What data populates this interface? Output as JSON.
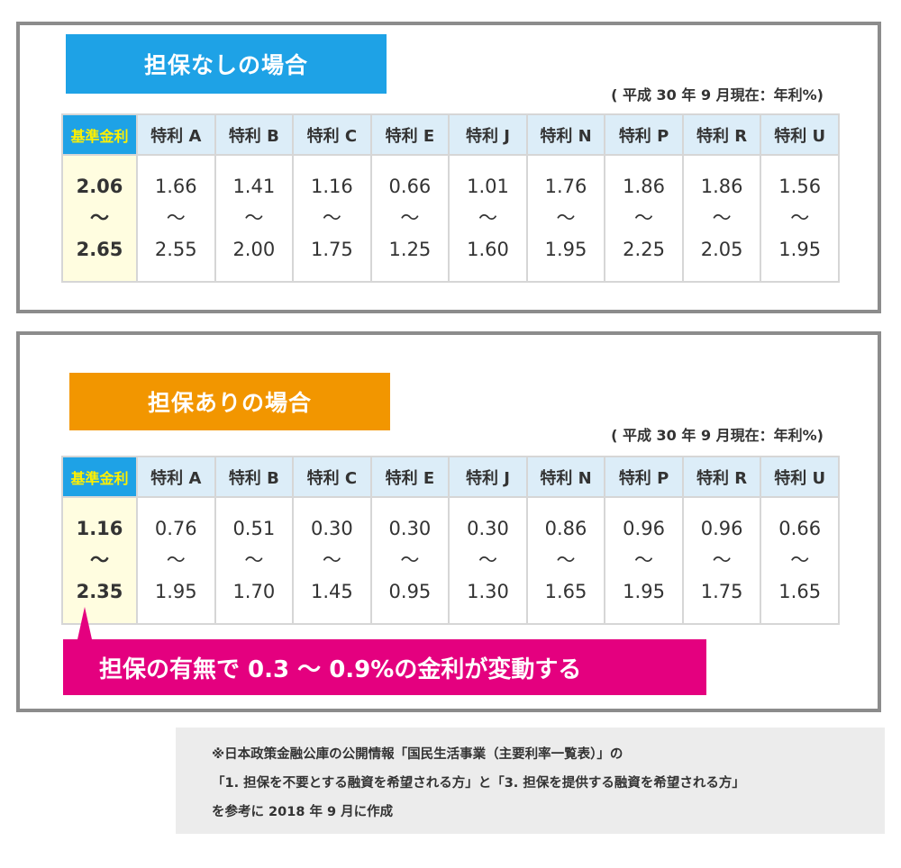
{
  "columns": [
    "基準金利",
    "特利 A",
    "特利 B",
    "特利 C",
    "特利 E",
    "特利 J",
    "特利 N",
    "特利 P",
    "特利 R",
    "特利 U"
  ],
  "tilde": "〜",
  "section1": {
    "title": "担保なしの場合",
    "as_of": "( 平成 30 年 9 月現在：年利%)",
    "rates": [
      {
        "low": "2.06",
        "high": "2.65"
      },
      {
        "low": "1.66",
        "high": "2.55"
      },
      {
        "low": "1.41",
        "high": "2.00"
      },
      {
        "low": "1.16",
        "high": "1.75"
      },
      {
        "low": "0.66",
        "high": "1.25"
      },
      {
        "low": "1.01",
        "high": "1.60"
      },
      {
        "low": "1.76",
        "high": "1.95"
      },
      {
        "low": "1.86",
        "high": "2.25"
      },
      {
        "low": "1.86",
        "high": "2.05"
      },
      {
        "low": "1.56",
        "high": "1.95"
      }
    ]
  },
  "section2": {
    "title": "担保ありの場合",
    "as_of": "( 平成 30 年 9 月現在：年利%)",
    "rates": [
      {
        "low": "1.16",
        "high": "2.35"
      },
      {
        "low": "0.76",
        "high": "1.95"
      },
      {
        "low": "0.51",
        "high": "1.70"
      },
      {
        "low": "0.30",
        "high": "1.45"
      },
      {
        "low": "0.30",
        "high": "0.95"
      },
      {
        "low": "0.30",
        "high": "1.30"
      },
      {
        "low": "0.86",
        "high": "1.65"
      },
      {
        "low": "0.96",
        "high": "1.95"
      },
      {
        "low": "0.96",
        "high": "1.75"
      },
      {
        "low": "0.66",
        "high": "1.65"
      }
    ],
    "callout": "担保の有無で 0.3 〜 0.9%の金利が変動する"
  },
  "footnote": {
    "line1": "※日本政策金融公庫の公開情報「国民生活事業（主要利率一覧表）」の",
    "line2": "「1. 担保を不要とする融資を希望される方」と「3. 担保を提供する融資を希望される方」",
    "line3": "を参考に 2018 年 9 月に作成"
  },
  "colors": {
    "blue_banner": "#1ea2e6",
    "orange_banner": "#f29600",
    "magenta_callout": "#e4007f",
    "header_cell": "#dcedf8",
    "base_rate_text": "#fff000",
    "base_rate_cell": "#fffde0"
  }
}
